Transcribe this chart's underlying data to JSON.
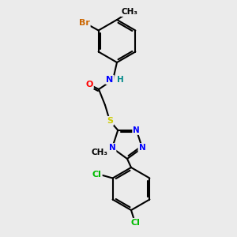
{
  "background_color": "#ebebeb",
  "bond_color": "#000000",
  "atom_colors": {
    "Br": "#cc6600",
    "Cl": "#00bb00",
    "N": "#0000ff",
    "O": "#ff0000",
    "S": "#cccc00",
    "H": "#008888",
    "C": "#000000"
  },
  "figsize": [
    3.0,
    3.0
  ],
  "dpi": 100
}
